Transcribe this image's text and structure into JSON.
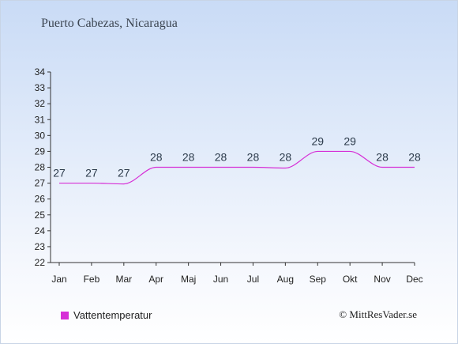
{
  "title": "Puerto Cabezas, Nicaragua",
  "copyright": "© MittResVader.se",
  "chart_data": {
    "type": "line",
    "categories": [
      "Jan",
      "Feb",
      "Mar",
      "Apr",
      "Maj",
      "Jun",
      "Jul",
      "Aug",
      "Sep",
      "Okt",
      "Nov",
      "Dec"
    ],
    "series": [
      {
        "name": "Vattentemperatur",
        "values": [
          27,
          27,
          27,
          28,
          28,
          28,
          28,
          28,
          29,
          29,
          28,
          28
        ],
        "labels": [
          "27",
          "27",
          "27",
          "28",
          "28",
          "28",
          "28",
          "28",
          "29",
          "29",
          "28",
          "28"
        ],
        "curve": [
          27,
          27,
          26.95,
          28,
          28,
          28,
          28,
          27.95,
          29,
          29,
          28,
          28
        ],
        "color": "#d62fd6"
      }
    ],
    "ylim": [
      22,
      34
    ],
    "yticks": [
      "22",
      "23",
      "24",
      "25",
      "26",
      "27",
      "28",
      "29",
      "30",
      "31",
      "32",
      "33",
      "34"
    ],
    "grid": false,
    "legend": "bottom-left"
  }
}
